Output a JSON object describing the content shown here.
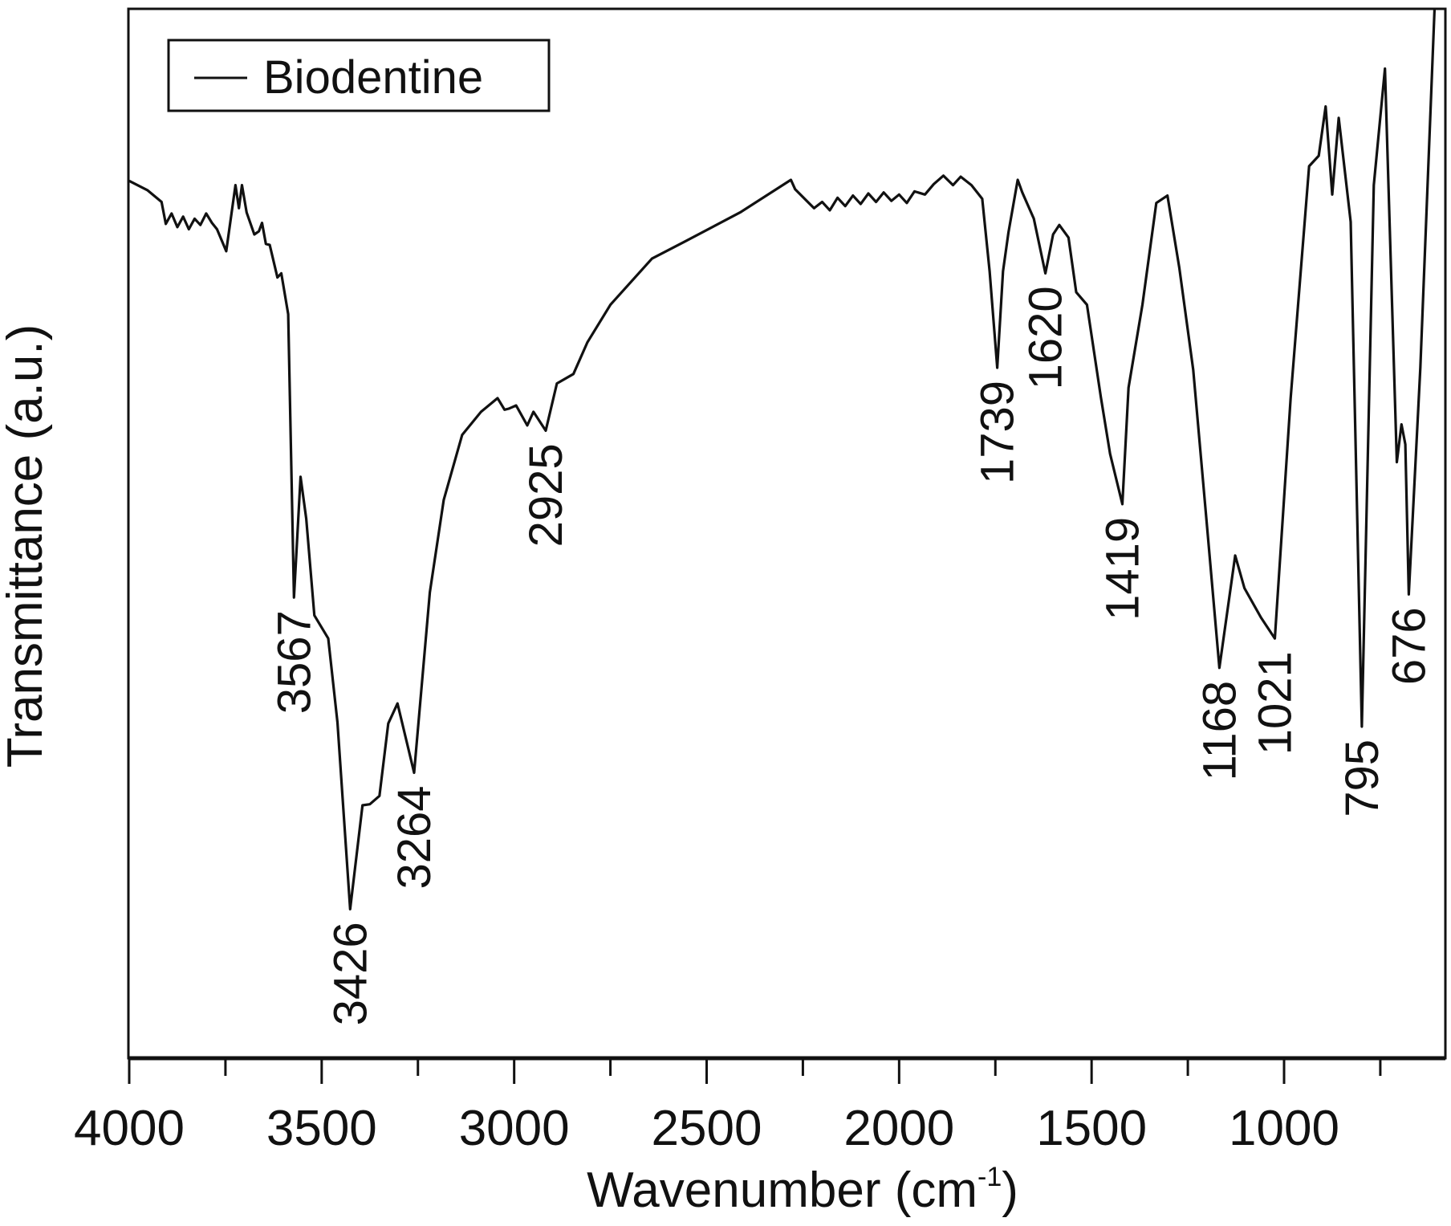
{
  "chart_data": {
    "type": "line",
    "title": "",
    "xlabel": "Wavenumber (cm",
    "xlabel_sup": "-1",
    "xlabel_close": ")",
    "ylabel": "Transmittance (a.u.)",
    "xlim": [
      4000,
      580
    ],
    "ylim": [
      0,
      100
    ],
    "x_ticks": [
      4000,
      3500,
      3000,
      2500,
      2000,
      1500,
      1000
    ],
    "x_tick_labels": [
      "4000",
      "3500",
      "3000",
      "2500",
      "2000",
      "1500",
      "1000"
    ],
    "x_minor_ticks": [
      3750,
      3250,
      2750,
      2250,
      1750,
      1250,
      750
    ],
    "grid": false,
    "legend": {
      "position": "top-left",
      "entries": [
        "Biodentine"
      ]
    },
    "series": [
      {
        "name": "Biodentine",
        "color": "#111111",
        "x": [
          4000,
          3952,
          3916,
          3905,
          3890,
          3875,
          3860,
          3845,
          3830,
          3815,
          3800,
          3785,
          3772,
          3748,
          3724,
          3715,
          3707,
          3695,
          3675,
          3663,
          3655,
          3645,
          3635,
          3615,
          3605,
          3587,
          3572,
          3555,
          3540,
          3519,
          3483,
          3459,
          3426,
          3394,
          3375,
          3350,
          3327,
          3303,
          3260,
          3219,
          3183,
          3135,
          3086,
          3043,
          3025,
          3014,
          2995,
          2966,
          2950,
          2918,
          2889,
          2846,
          2810,
          2750,
          2642,
          2558,
          2413,
          2281,
          2270,
          2221,
          2200,
          2180,
          2160,
          2140,
          2120,
          2100,
          2080,
          2060,
          2040,
          2020,
          2000,
          1980,
          1960,
          1933,
          1910,
          1885,
          1860,
          1840,
          1812,
          1784,
          1765,
          1745,
          1730,
          1716,
          1692,
          1680,
          1650,
          1620,
          1600,
          1584,
          1560,
          1540,
          1512,
          1476,
          1452,
          1420,
          1404,
          1368,
          1332,
          1303,
          1272,
          1236,
          1200,
          1168,
          1127,
          1103,
          1060,
          1024,
          983,
          935,
          910,
          892,
          875,
          858,
          827,
          798,
          767,
          738,
          707,
          695,
          685,
          676,
          646,
          609
        ],
        "y": [
          83.6,
          82.7,
          81.6,
          79.5,
          80.5,
          79.2,
          80.2,
          79,
          80,
          79.4,
          80.5,
          79.6,
          79,
          76.9,
          83.2,
          81,
          83.2,
          80.6,
          78.5,
          78.8,
          79.6,
          77.6,
          77.5,
          74.4,
          74.8,
          70.9,
          43.9,
          55.4,
          51.4,
          42.2,
          40,
          32,
          14.2,
          24.1,
          24.2,
          25,
          31.9,
          33.8,
          27.2,
          44.4,
          53.2,
          59.4,
          61.6,
          62.9,
          61.8,
          61.9,
          62.2,
          60.3,
          61.6,
          59.8,
          64.3,
          65.2,
          68.2,
          71.8,
          76.2,
          77.8,
          80.6,
          83.7,
          82.8,
          81,
          81.6,
          80.8,
          82,
          81.2,
          82.2,
          81.4,
          82.4,
          81.6,
          82.5,
          81.7,
          82.3,
          81.5,
          82.6,
          82.3,
          83.3,
          84.1,
          83.2,
          84,
          83.2,
          81.9,
          75,
          65.8,
          75,
          78.7,
          83.7,
          82.5,
          80,
          74.8,
          78.5,
          79.4,
          78.2,
          73,
          71.8,
          63,
          57.6,
          52.8,
          63.9,
          71.8,
          81.5,
          82.2,
          75.3,
          65.6,
          50.6,
          37.2,
          47.9,
          44.8,
          42,
          40,
          62.9,
          85,
          86,
          90.7,
          82.3,
          89.6,
          79.7,
          31.6,
          83.2,
          94.3,
          56.8,
          60.4,
          58.5,
          44.2,
          65.8,
          100
        ]
      }
    ],
    "annotations": [
      {
        "text": "3567",
        "x": 3572,
        "y": 43.9
      },
      {
        "text": "3426",
        "x": 3426,
        "y": 14.2
      },
      {
        "text": "3264",
        "x": 3260,
        "y": 27.2
      },
      {
        "text": "2925",
        "x": 2918,
        "y": 59.8
      },
      {
        "text": "1739",
        "x": 1745,
        "y": 65.8
      },
      {
        "text": "1620",
        "x": 1620,
        "y": 74.8
      },
      {
        "text": "1419",
        "x": 1420,
        "y": 52.8
      },
      {
        "text": "1168",
        "x": 1168,
        "y": 37.2
      },
      {
        "text": "1021",
        "x": 1024,
        "y": 40
      },
      {
        "text": "795",
        "x": 798,
        "y": 31.6
      },
      {
        "text": "676",
        "x": 676,
        "y": 44.2
      }
    ]
  }
}
